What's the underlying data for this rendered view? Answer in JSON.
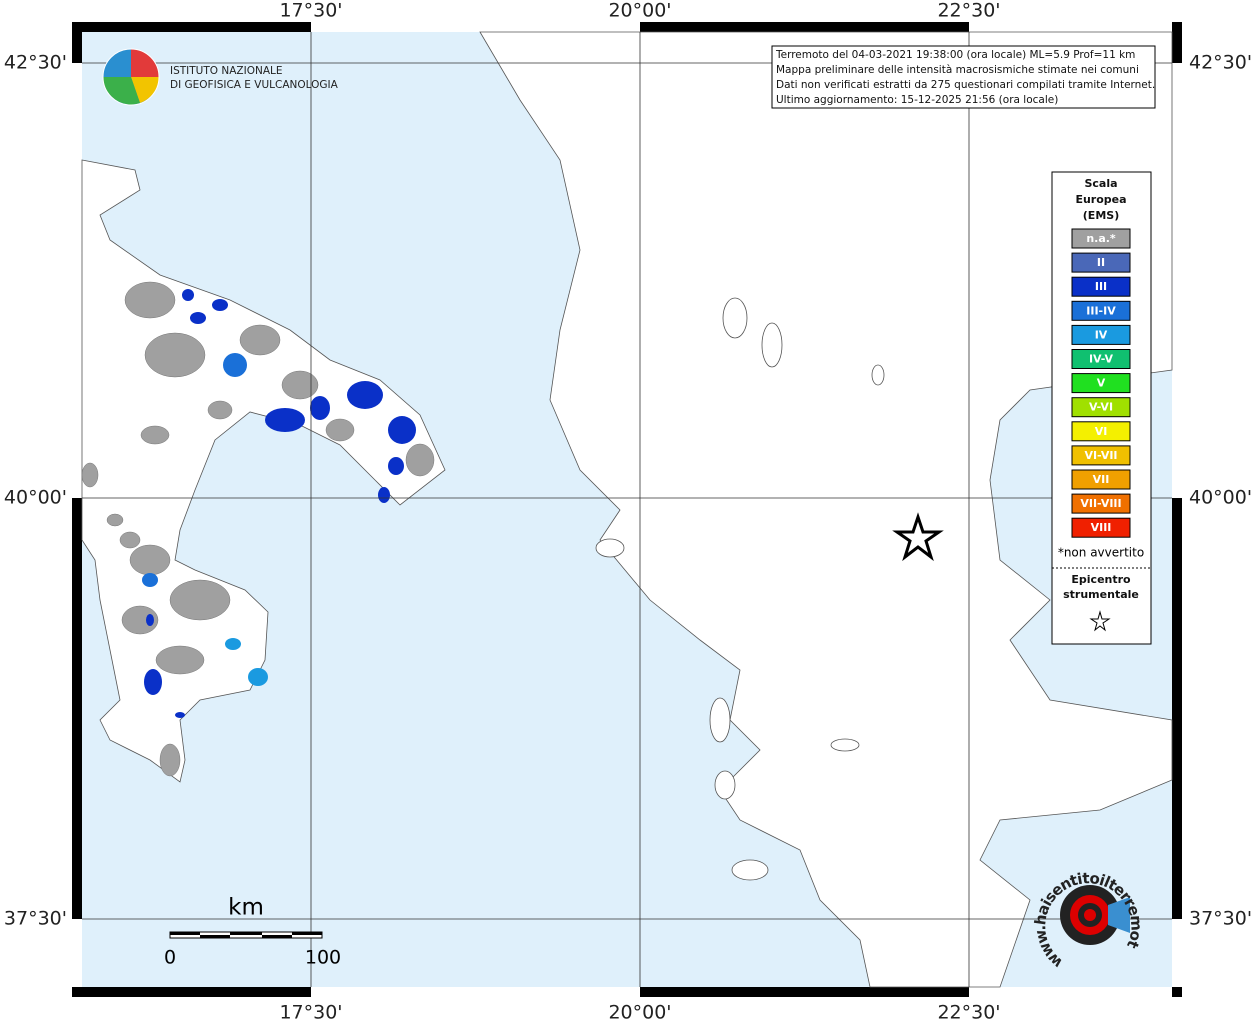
{
  "map": {
    "lon_labels": [
      "17°30'",
      "20°00'",
      "22°30'"
    ],
    "lat_labels": [
      "42°30'",
      "40°00'",
      "37°30'"
    ],
    "info": [
      "Terremoto del 04-03-2021 19:38:00 (ora locale) ML=5.9 Prof=11 km",
      "Mappa preliminare delle intensità macrosismiche stimate nei comuni",
      "Dati non verificati estratti da 275 questionari compilati tramite Internet.",
      "Ultimo aggiornamento: 15-12-2025 21:56 (ora locale)"
    ],
    "logo": [
      "ISTITUTO NAZIONALE",
      "DI GEOFISICA E VULCANOLOGIA"
    ],
    "legend": {
      "title": [
        "Scala",
        "Europea",
        "(EMS)"
      ],
      "items": [
        {
          "label": "n.a.*",
          "color": "#a0a0a0"
        },
        {
          "label": "II",
          "color": "#4a68b8"
        },
        {
          "label": "III",
          "color": "#0a30c8"
        },
        {
          "label": "III-IV",
          "color": "#1a70d8"
        },
        {
          "label": "IV",
          "color": "#1a9ae0"
        },
        {
          "label": "IV-V",
          "color": "#10c070"
        },
        {
          "label": "V",
          "color": "#20e020"
        },
        {
          "label": "V-VI",
          "color": "#a0e000"
        },
        {
          "label": "VI",
          "color": "#f4f000"
        },
        {
          "label": "VI-VII",
          "color": "#f0c000"
        },
        {
          "label": "VII",
          "color": "#f0a000"
        },
        {
          "label": "VII-VIII",
          "color": "#f07000"
        },
        {
          "label": "VIII",
          "color": "#f02000"
        }
      ],
      "note": "*non avvertito",
      "epicenter": [
        "Epicentro",
        "strumentale"
      ]
    },
    "scale": {
      "unit": "km",
      "labels": [
        "0",
        "100"
      ]
    },
    "brand": "www.haisentitoilterremoto.it"
  }
}
